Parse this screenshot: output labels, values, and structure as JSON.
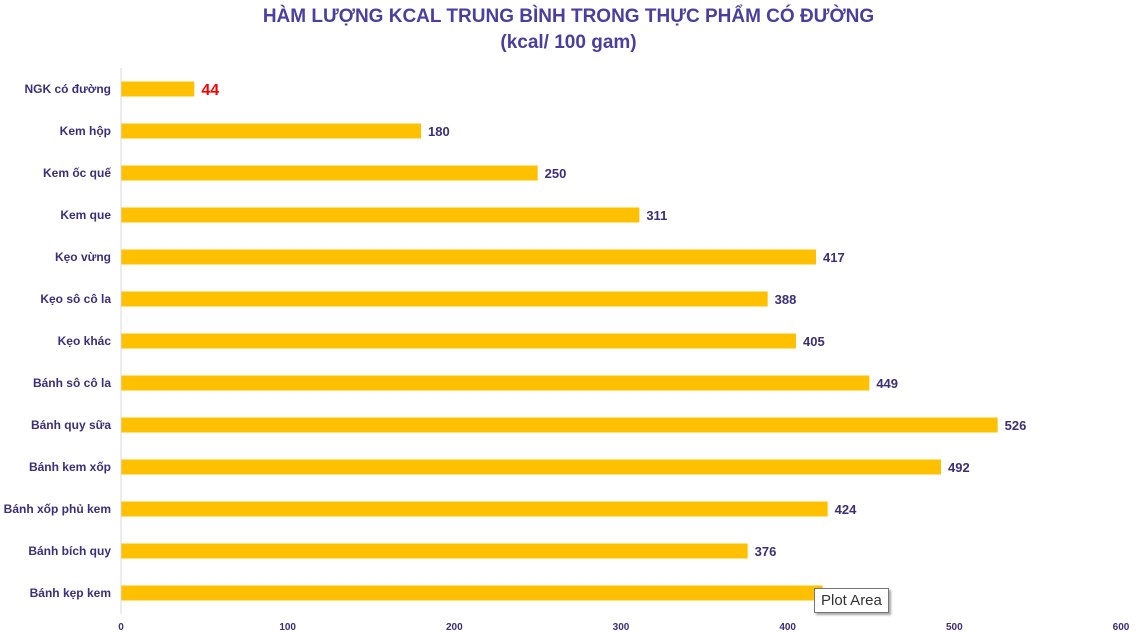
{
  "chart_data": {
    "type": "bar",
    "orientation": "horizontal",
    "title": "HÀM LƯỢNG KCAL TRUNG BÌNH TRONG THỰC PHẨM CÓ ĐƯỜNG",
    "subtitle": "(kcal/ 100 gam)",
    "categories": [
      "NGK có đường",
      "Kem hộp",
      "Kem ốc quế",
      "Kem que",
      "Kẹo vừng",
      "Kẹo sô cô la",
      "Kẹo khác",
      "Bánh sô cô la",
      "Bánh quy sữa",
      "Bánh kem xốp",
      "Bánh xốp phủ kem",
      "Bánh bích quy",
      "Bánh kẹp kem"
    ],
    "values": [
      44,
      180,
      250,
      311,
      417,
      388,
      405,
      449,
      526,
      492,
      424,
      376,
      421
    ],
    "value_labels": [
      "44",
      "180",
      "250",
      "311",
      "417",
      "388",
      "405",
      "449",
      "526",
      "492",
      "424",
      "376",
      ""
    ],
    "highlight_index": 0,
    "highlight_color": "#ff0000",
    "bar_color": "#ffc000",
    "label_color": "#3b2f7a",
    "title_color": "#4a3f9e",
    "xlim": [
      0,
      600
    ],
    "xticks": [
      "0",
      "100",
      "200",
      "300",
      "400",
      "500",
      "600"
    ],
    "grid": false,
    "legend": "none"
  },
  "tooltip": {
    "text": "Plot Area"
  }
}
